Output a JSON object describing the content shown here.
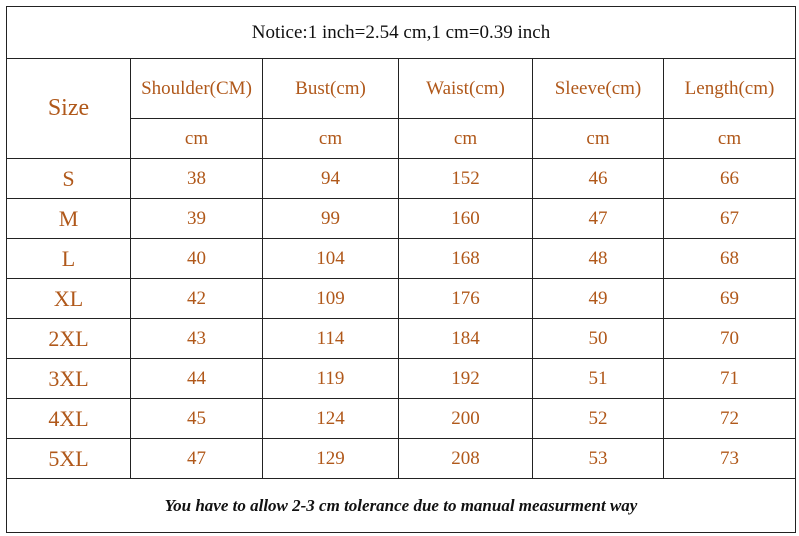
{
  "notice": "Notice:1 inch=2.54 cm,1 cm=0.39 inch",
  "table": {
    "size_header": "Size",
    "columns": [
      "Shoulder(CM)",
      "Bust(cm)",
      "Waist(cm)",
      "Sleeve(cm)",
      "Length(cm)"
    ],
    "units": [
      "cm",
      "cm",
      "cm",
      "cm",
      "cm"
    ],
    "rows": [
      {
        "size": "S",
        "values": [
          38,
          94,
          152,
          46,
          66
        ]
      },
      {
        "size": "M",
        "values": [
          39,
          99,
          160,
          47,
          67
        ]
      },
      {
        "size": "L",
        "values": [
          40,
          104,
          168,
          48,
          68
        ]
      },
      {
        "size": "XL",
        "values": [
          42,
          109,
          176,
          49,
          69
        ]
      },
      {
        "size": "2XL",
        "values": [
          43,
          114,
          184,
          50,
          70
        ]
      },
      {
        "size": "3XL",
        "values": [
          44,
          119,
          192,
          51,
          71
        ]
      },
      {
        "size": "4XL",
        "values": [
          45,
          124,
          200,
          52,
          72
        ]
      },
      {
        "size": "5XL",
        "values": [
          47,
          129,
          208,
          53,
          73
        ]
      }
    ]
  },
  "footer": "You have to allow 2-3 cm tolerance due to manual measurment way"
}
